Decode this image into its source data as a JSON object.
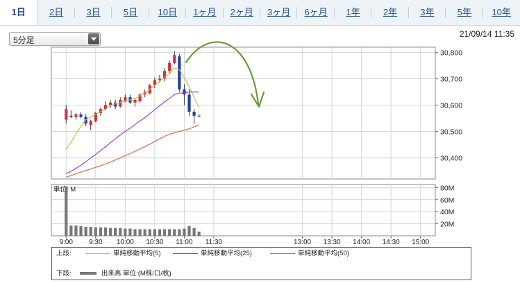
{
  "tabs": [
    {
      "label": "1日",
      "active": true
    },
    {
      "label": "2日"
    },
    {
      "label": "3日"
    },
    {
      "label": "5日"
    },
    {
      "label": "10日"
    },
    {
      "label": "1ヶ月"
    },
    {
      "label": "2ヶ月"
    },
    {
      "label": "3ヶ月"
    },
    {
      "label": "6ヶ月"
    },
    {
      "label": "1年"
    },
    {
      "label": "2年"
    },
    {
      "label": "3年"
    },
    {
      "label": "5年"
    },
    {
      "label": "10年"
    }
  ],
  "interval_select": {
    "value": "5分足"
  },
  "timestamp": "21/09/14 11:35",
  "chart_data": {
    "type": "candlestick",
    "price_axis": {
      "ylim": [
        30320,
        30820
      ],
      "ticks": [
        30400,
        30500,
        30600,
        30700,
        30800
      ],
      "tick_labels": [
        "30,400",
        "30,500",
        "30,600",
        "30,700",
        "30,800"
      ]
    },
    "volume_axis": {
      "unit_label": "単位: M",
      "ylim": [
        0,
        85
      ],
      "ticks": [
        20,
        40,
        60,
        80
      ],
      "tick_labels": [
        "20M",
        "40M",
        "60M",
        "80M"
      ]
    },
    "x_axis": {
      "session_start": "9:00",
      "session_end": "15:15",
      "tick_labels": [
        "9:00",
        "9:30",
        "10:00",
        "10:30",
        "11:00",
        "11:30",
        "13:00",
        "13:30",
        "14:00",
        "14:30",
        "15:00"
      ]
    },
    "candles": [
      {
        "o": 30545,
        "h": 30600,
        "l": 30530,
        "c": 30585
      },
      {
        "o": 30560,
        "h": 30580,
        "l": 30550,
        "c": 30555
      },
      {
        "o": 30555,
        "h": 30570,
        "l": 30545,
        "c": 30565
      },
      {
        "o": 30565,
        "h": 30575,
        "l": 30550,
        "c": 30555
      },
      {
        "o": 30555,
        "h": 30565,
        "l": 30520,
        "c": 30530
      },
      {
        "o": 30525,
        "h": 30545,
        "l": 30505,
        "c": 30540
      },
      {
        "o": 30540,
        "h": 30575,
        "l": 30535,
        "c": 30570
      },
      {
        "o": 30570,
        "h": 30590,
        "l": 30560,
        "c": 30585
      },
      {
        "o": 30585,
        "h": 30615,
        "l": 30580,
        "c": 30600
      },
      {
        "o": 30600,
        "h": 30620,
        "l": 30590,
        "c": 30610
      },
      {
        "o": 30610,
        "h": 30620,
        "l": 30585,
        "c": 30595
      },
      {
        "o": 30595,
        "h": 30630,
        "l": 30590,
        "c": 30620
      },
      {
        "o": 30615,
        "h": 30640,
        "l": 30610,
        "c": 30630
      },
      {
        "o": 30630,
        "h": 30640,
        "l": 30605,
        "c": 30610
      },
      {
        "o": 30610,
        "h": 30625,
        "l": 30595,
        "c": 30620
      },
      {
        "o": 30615,
        "h": 30645,
        "l": 30610,
        "c": 30640
      },
      {
        "o": 30640,
        "h": 30660,
        "l": 30630,
        "c": 30650
      },
      {
        "o": 30645,
        "h": 30680,
        "l": 30640,
        "c": 30675
      },
      {
        "o": 30675,
        "h": 30705,
        "l": 30665,
        "c": 30695
      },
      {
        "o": 30695,
        "h": 30715,
        "l": 30685,
        "c": 30700
      },
      {
        "o": 30700,
        "h": 30740,
        "l": 30690,
        "c": 30730
      },
      {
        "o": 30730,
        "h": 30770,
        "l": 30720,
        "c": 30760
      },
      {
        "o": 30760,
        "h": 30805,
        "l": 30755,
        "c": 30790
      },
      {
        "o": 30785,
        "h": 30795,
        "l": 30650,
        "c": 30660
      },
      {
        "o": 30660,
        "h": 30680,
        "l": 30600,
        "c": 30640
      },
      {
        "o": 30640,
        "h": 30660,
        "l": 30560,
        "c": 30575
      },
      {
        "o": 30575,
        "h": 30585,
        "l": 30530,
        "c": 30560
      },
      {
        "o": 30560,
        "h": 30565,
        "l": 30555,
        "c": 30558
      }
    ],
    "volume": [
      82,
      17,
      17,
      16,
      15,
      15,
      14,
      14,
      14,
      13,
      13,
      13,
      12,
      12,
      11,
      11,
      11,
      11,
      11,
      11,
      11,
      11,
      11,
      11,
      12,
      16,
      13,
      7
    ],
    "moving_averages": [
      {
        "name": "単純移動平均(5)",
        "color": "#b5c85a",
        "values": [
          30432,
          30460,
          30490,
          30520,
          30545,
          30555,
          30565,
          30575,
          30585,
          30598,
          30605,
          30610,
          30615,
          30620,
          30625,
          30635,
          30645,
          30660,
          30675,
          30690,
          30705,
          30720,
          30740,
          30735,
          30705,
          30670,
          30630,
          30590
        ]
      },
      {
        "name": "単純移動平均(25)",
        "color": "#a23fd6",
        "values": [
          30340,
          30350,
          30360,
          30372,
          30385,
          30400,
          30413,
          30428,
          30442,
          30458,
          30472,
          30487,
          30500,
          30513,
          30526,
          30540,
          30553,
          30568,
          30583,
          30598,
          30612,
          30626,
          30640,
          30646,
          30646,
          30650,
          30650,
          30650
        ]
      },
      {
        "name": "単純移動平均(50)",
        "color": "#e06a4a",
        "values": [
          30327,
          30333,
          30340,
          30346,
          30352,
          30358,
          30364,
          30370,
          30377,
          30384,
          30392,
          30400,
          30408,
          30416,
          30425,
          30434,
          30443,
          30452,
          30462,
          30472,
          30482,
          30490,
          30495,
          30500,
          30505,
          30510,
          30518,
          30525
        ]
      }
    ],
    "legend": {
      "upper_label": "上段:",
      "lower_label": "下段:",
      "lower_series": "出来高 単位:(M株/口/枚)"
    },
    "annotation": {
      "type": "hand-drawn arc arrow",
      "color": "#6a9a3a"
    }
  }
}
